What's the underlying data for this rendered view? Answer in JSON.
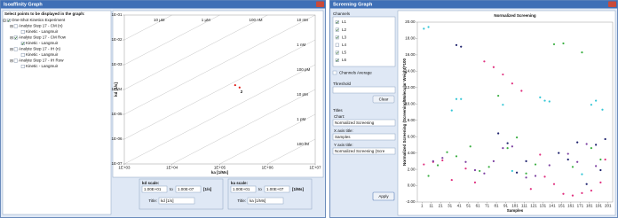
{
  "left_window": {
    "title": "Isoaffinity Graph",
    "prompt": "Select points to be displayed in the graph:",
    "tree": [
      {
        "label": "One-Shot Kinetics Experiment",
        "level": 0,
        "checked": true
      },
      {
        "label": "Analyte Step 17 - CM (n)",
        "level": 1,
        "checked": false
      },
      {
        "label": "Kinetic - Langmuir",
        "level": 2,
        "checked": false
      },
      {
        "label": "Analyte Step 17 - CM Row",
        "level": 1,
        "checked": true
      },
      {
        "label": "Kinetic - Langmuir",
        "level": 2,
        "checked": true
      },
      {
        "label": "Analyte Step 17 - IH (n)",
        "level": 1,
        "checked": false
      },
      {
        "label": "Kinetic - Langmuir",
        "level": 2,
        "checked": false
      },
      {
        "label": "Analyte Step 17 - IH Row",
        "level": 1,
        "checked": false
      },
      {
        "label": "Kinetic - Langmuir",
        "level": 2,
        "checked": false
      }
    ],
    "kd_scale": {
      "label": "kd scale:",
      "from": "1.00E+01",
      "to_word": "to",
      "to": "1.00E-07",
      "unit": "[1/s]",
      "title_label": "Title:",
      "title": "kd [1/s]"
    },
    "ka_scale": {
      "label": "ka scale:",
      "from": "1.00E+01",
      "to_word": "to",
      "to": "1.00E+07",
      "unit": "[1/Ms]",
      "title_label": "Title:",
      "title": "ka [1/Ms]"
    }
  },
  "right_window": {
    "title": "Screening Graph",
    "channels_label": "Channels",
    "channels": [
      {
        "label": "L1",
        "checked": true
      },
      {
        "label": "L2",
        "checked": true
      },
      {
        "label": "L3",
        "checked": true
      },
      {
        "label": "L4",
        "checked": false
      },
      {
        "label": "L5",
        "checked": true
      },
      {
        "label": "L6",
        "checked": true
      }
    ],
    "average": "Channels Average",
    "threshold": "Threshold",
    "clear": "Clear",
    "titles": "Titles",
    "chart_label": "Chart:",
    "chart_value": "Normalized Screening",
    "x_label": "X axis title:",
    "x_value": "Samples",
    "y_label": "Y axis title:",
    "y_value": "Normalized Screening (Scre",
    "apply": "Apply"
  },
  "chart_data": [
    {
      "type": "scatter",
      "log": true,
      "x_label": "ka [1/Ms]",
      "y_label": "kd [1/s]",
      "xlim": [
        1000,
        10000000
      ],
      "ylim": [
        1e-07,
        0.1
      ],
      "xticks": [
        {
          "value": 1000,
          "label": "1E+03"
        },
        {
          "value": 10000,
          "label": "1E+04"
        },
        {
          "value": 100000,
          "label": "1E+05"
        },
        {
          "value": 1000000,
          "label": "1E+06"
        },
        {
          "value": 10000000,
          "label": "1E+07"
        }
      ],
      "yticks": [
        {
          "value": 0.1,
          "label": "1E-01"
        },
        {
          "value": 0.01,
          "label": "1E-02"
        },
        {
          "value": 0.001,
          "label": "1E-03"
        },
        {
          "value": 0.0001,
          "label": "1E-04"
        },
        {
          "value": 1e-05,
          "label": "1E-05"
        },
        {
          "value": 1e-06,
          "label": "1E-06"
        },
        {
          "value": 1e-07,
          "label": "1E-07"
        }
      ],
      "iso_lines": [
        {
          "value": 1e-05,
          "label": "10 µM"
        },
        {
          "value": 1e-06,
          "label": "1 µM"
        },
        {
          "value": 1e-07,
          "label": "100 nM"
        },
        {
          "value": 1e-08,
          "label": "10 nM"
        },
        {
          "value": 1e-09,
          "label": "1 nM"
        },
        {
          "value": 1e-10,
          "label": "100 pM"
        },
        {
          "value": 1e-11,
          "label": "10 pM"
        },
        {
          "value": 1e-12,
          "label": "1 pM"
        },
        {
          "value": 1e-13,
          "label": "100 fM"
        }
      ],
      "series": [
        {
          "color": "#e0201c",
          "x": [
            210000,
            260000
          ],
          "values": [
            0.00015,
            0.00012
          ]
        }
      ],
      "point_label": "2"
    },
    {
      "type": "scatter",
      "log": false,
      "title": "Normalized Screening",
      "x_label": "Samples",
      "y_label": "Normalized Screening (Screening/Molecular Weight)*100",
      "xlim": [
        -4,
        206
      ],
      "ylim": [
        -2,
        20
      ],
      "xticks": [
        1,
        11,
        21,
        31,
        41,
        51,
        61,
        71,
        81,
        91,
        101,
        111,
        121,
        131,
        141,
        151,
        161,
        171,
        181,
        191,
        201
      ],
      "yticks": [
        {
          "value": -2,
          "label": "-2.00"
        },
        {
          "value": 0,
          "label": "0.00"
        },
        {
          "value": 2,
          "label": "2.00"
        },
        {
          "value": 4,
          "label": "4.00"
        },
        {
          "value": 6,
          "label": "6.00"
        },
        {
          "value": 8,
          "label": "8.00"
        },
        {
          "value": 10,
          "label": "10.00"
        },
        {
          "value": 12,
          "label": "12.00"
        },
        {
          "value": 14,
          "label": "14.00"
        },
        {
          "value": 16,
          "label": "16.00"
        },
        {
          "value": 18,
          "label": "18.00"
        },
        {
          "value": 20,
          "label": "20.00"
        }
      ],
      "series": [
        {
          "color": "#1b1f6b",
          "x": [
            38,
            43,
            83,
            93,
            103,
            113,
            148,
            158,
            168,
            178,
            188,
            193,
            198
          ],
          "values": [
            17.2,
            17.0,
            6.4,
            5.2,
            1.6,
            3.0,
            4.0,
            3.2,
            5.3,
            0.2,
            5.0,
            1.9,
            5.7
          ]
        },
        {
          "color": "#e0307f",
          "x": [
            3,
            13,
            23,
            33,
            48,
            58,
            68,
            78,
            88,
            98,
            108,
            118,
            128,
            133,
            143,
            153,
            163,
            173,
            183,
            193,
            198
          ],
          "values": [
            2.6,
            2.9,
            3.1,
            0.7,
            2.1,
            0.4,
            15.2,
            14.5,
            13.6,
            12.5,
            11.6,
            -0.4,
            3.8,
            1.1,
            0.2,
            -1.0,
            -1.2,
            -0.9,
            -0.6,
            0.4,
            3.2
          ]
        },
        {
          "color": "#3cb043",
          "x": [
            8,
            18,
            28,
            38,
            53,
            63,
            73,
            83,
            93,
            103,
            113,
            123,
            143,
            153,
            163,
            173,
            183,
            193
          ],
          "values": [
            1.2,
            2.5,
            4.1,
            3.6,
            4.8,
            1.8,
            2.3,
            11.0,
            4.6,
            5.9,
            1.5,
            2.6,
            17.3,
            17.4,
            2.3,
            16.3,
            4.6,
            3.2
          ]
        },
        {
          "color": "#33c6d6",
          "x": [
            3,
            8,
            33,
            38,
            43,
            88,
            98,
            128,
            133,
            138,
            173,
            183,
            188,
            195
          ],
          "values": [
            19.2,
            19.4,
            9.2,
            10.6,
            10.6,
            9.9,
            1.8,
            10.8,
            10.4,
            10.3,
            1.4,
            9.9,
            10.4,
            9.3
          ]
        },
        {
          "color": "#7b3fa0",
          "x": [
            13,
            23,
            48,
            58,
            68,
            78,
            88,
            98,
            113,
            123,
            138,
            158,
            168,
            178,
            188
          ],
          "values": [
            3.0,
            3.4,
            2.9,
            1.9,
            1.5,
            3.0,
            4.6,
            4.8,
            1.0,
            1.2,
            2.5,
            3.9,
            2.9,
            5.1,
            2.4
          ]
        }
      ]
    }
  ]
}
